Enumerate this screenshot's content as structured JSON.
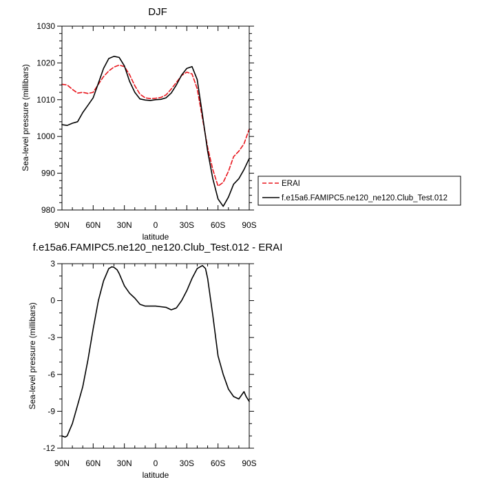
{
  "chart_data": [
    {
      "type": "line",
      "title": "DJF",
      "xlabel": "latitude",
      "ylabel": "Sea-level pressure (millibars)",
      "xlim": [
        90,
        -90
      ],
      "ylim": [
        980,
        1030
      ],
      "xticks": [
        90,
        60,
        30,
        0,
        -30,
        -60,
        -90
      ],
      "xtick_labels": [
        "90N",
        "60N",
        "30N",
        "0",
        "30S",
        "60S",
        "90S"
      ],
      "yticks": [
        980,
        990,
        1000,
        1010,
        1020,
        1030
      ],
      "ytick_labels": [
        "980",
        "990",
        "1000",
        "1010",
        "1020",
        "1030"
      ],
      "grid": false,
      "legend": "outside-right",
      "series": [
        {
          "name": "ERAI",
          "color": "#e8141b",
          "dash": "dashed",
          "x": [
            90,
            85,
            80,
            75,
            70,
            65,
            60,
            55,
            50,
            45,
            40,
            35,
            30,
            25,
            20,
            15,
            10,
            5,
            0,
            -5,
            -10,
            -15,
            -20,
            -25,
            -30,
            -35,
            -40,
            -45,
            -50,
            -55,
            -60,
            -65,
            -70,
            -75,
            -80,
            -85,
            -90
          ],
          "values": [
            1014.2,
            1014.0,
            1012.8,
            1011.8,
            1012.0,
            1011.7,
            1012.0,
            1014.2,
            1016.3,
            1017.8,
            1018.9,
            1019.4,
            1019.0,
            1016.8,
            1013.8,
            1011.5,
            1010.5,
            1010.3,
            1010.4,
            1010.6,
            1011.3,
            1012.9,
            1014.7,
            1016.6,
            1017.5,
            1017.0,
            1013.0,
            1005.0,
            997.0,
            991.0,
            986.5,
            987.5,
            990.5,
            994.5,
            996.0,
            998.0,
            1002.0
          ]
        },
        {
          "name": "f.e15a6.FAMIPC5.ne120_ne120.Club_Test.012",
          "color": "#000000",
          "dash": "solid",
          "x": [
            90,
            85,
            80,
            75,
            70,
            65,
            60,
            55,
            50,
            45,
            40,
            35,
            30,
            25,
            20,
            15,
            10,
            5,
            0,
            -5,
            -10,
            -15,
            -20,
            -25,
            -30,
            -35,
            -40,
            -45,
            -50,
            -55,
            -60,
            -65,
            -70,
            -75,
            -80,
            -85,
            -90
          ],
          "values": [
            1003.2,
            1003.0,
            1003.6,
            1004.0,
            1006.5,
            1008.5,
            1010.5,
            1014.5,
            1018.5,
            1021.2,
            1021.8,
            1021.5,
            1019.2,
            1015.0,
            1012.0,
            1010.2,
            1009.9,
            1009.8,
            1010.0,
            1010.1,
            1010.5,
            1011.8,
            1014.0,
            1016.7,
            1018.5,
            1019.0,
            1015.5,
            1006.0,
            996.0,
            988.5,
            983.0,
            981.0,
            983.5,
            987.0,
            988.5,
            991.0,
            994.0
          ]
        }
      ]
    },
    {
      "type": "line",
      "title": "f.e15a6.FAMIPC5.ne120_ne120.Club_Test.012 - ERAI",
      "xlabel": "latitude",
      "ylabel": "Sea-level pressure (millibars)",
      "xlim": [
        90,
        -90
      ],
      "ylim": [
        -12,
        3
      ],
      "xticks": [
        90,
        60,
        30,
        0,
        -30,
        -60,
        -90
      ],
      "xtick_labels": [
        "90N",
        "60N",
        "30N",
        "0",
        "30S",
        "60S",
        "90S"
      ],
      "yticks": [
        -12,
        -9,
        -6,
        -3,
        0,
        3
      ],
      "ytick_labels": [
        "-12",
        "-9",
        "-6",
        "-3",
        "0",
        "3"
      ],
      "grid": false,
      "legend": "none",
      "series": [
        {
          "name": "f.e15a6.FAMIPC5.ne120_ne120.Club_Test.012 - ERAI",
          "color": "#000000",
          "dash": "solid",
          "x": [
            90,
            87,
            85,
            80,
            75,
            70,
            65,
            60,
            55,
            50,
            45,
            42,
            40,
            37,
            35,
            30,
            25,
            20,
            15,
            10,
            5,
            0,
            -5,
            -10,
            -15,
            -20,
            -25,
            -30,
            -35,
            -40,
            -45,
            -48,
            -50,
            -55,
            -60,
            -65,
            -70,
            -75,
            -80,
            -85,
            -87,
            -90
          ],
          "values": [
            -11.0,
            -11.1,
            -11.0,
            -10.0,
            -8.5,
            -7.0,
            -4.8,
            -2.3,
            0.0,
            1.6,
            2.6,
            2.75,
            2.7,
            2.5,
            2.2,
            1.2,
            0.6,
            0.2,
            -0.3,
            -0.45,
            -0.45,
            -0.45,
            -0.5,
            -0.55,
            -0.75,
            -0.6,
            0.0,
            0.8,
            1.8,
            2.6,
            2.85,
            2.6,
            1.8,
            -1.2,
            -4.5,
            -6.0,
            -7.2,
            -7.8,
            -8.0,
            -7.4,
            -7.8,
            -8.2
          ]
        }
      ]
    }
  ]
}
